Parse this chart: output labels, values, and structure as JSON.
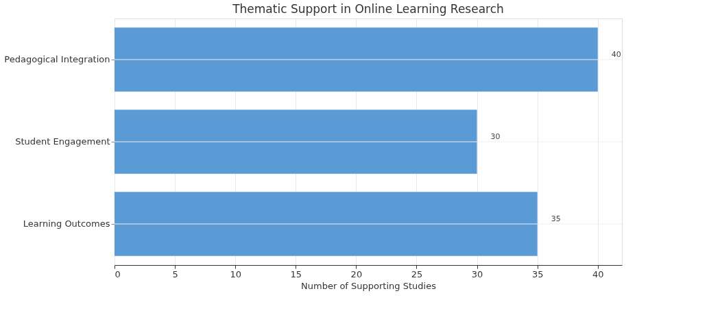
{
  "chart_data": {
    "type": "bar",
    "orientation": "horizontal",
    "title": "Thematic Support in Online Learning Research",
    "xlabel": "Number of Supporting Studies",
    "categories": [
      "Pedagogical Integration",
      "Student Engagement",
      "Learning Outcomes"
    ],
    "values": [
      40,
      30,
      35
    ],
    "color": "#5b9bd5",
    "xlim": [
      0,
      42
    ],
    "xticks": [
      0,
      5,
      10,
      15,
      20,
      25,
      30,
      35,
      40
    ],
    "grid": true,
    "data_labels": true
  }
}
